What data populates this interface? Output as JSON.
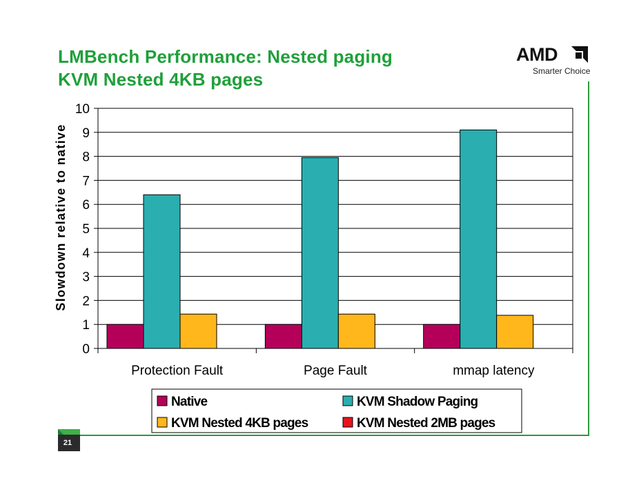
{
  "slide": {
    "title_line1": "LMBench Performance: Nested paging",
    "title_line2": "KVM Nested 4KB pages",
    "page_number": "21"
  },
  "logo": {
    "brand": "AMD",
    "tagline": "Smarter Choice",
    "icon": "amd-arrow-icon"
  },
  "colors": {
    "title": "#1fa03a",
    "frame": "#2a9a3a"
  },
  "chart_data": {
    "type": "bar",
    "title": "",
    "xlabel": "",
    "ylabel": "Slowdown relative to native",
    "categories": [
      "Protection Fault",
      "Page Fault",
      "mmap latency"
    ],
    "ylim": [
      0,
      10
    ],
    "yticks": [
      0,
      1,
      2,
      3,
      4,
      5,
      6,
      7,
      8,
      9,
      10
    ],
    "grid": true,
    "legend_position": "bottom",
    "series": [
      {
        "name": "Native",
        "color": "#b5005a",
        "values": [
          1,
          1,
          1
        ]
      },
      {
        "name": "KVM Shadow Paging",
        "color": "#2aaeb0",
        "values": [
          6.4,
          7.95,
          9.1
        ]
      },
      {
        "name": "KVM Nested 4KB pages",
        "color": "#ffb71b",
        "values": [
          1.43,
          1.43,
          1.38
        ]
      },
      {
        "name": "KVM Nested 2MB pages",
        "color": "#e8141b",
        "values": [
          null,
          null,
          null
        ]
      }
    ]
  }
}
